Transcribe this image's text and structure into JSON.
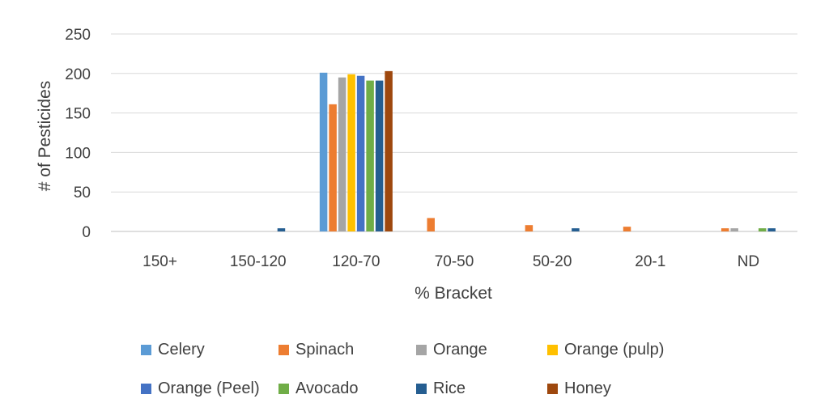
{
  "chart_data": {
    "type": "bar",
    "title": "",
    "xlabel": "% Bracket",
    "ylabel": "# of Pesticides",
    "ylim": [
      0,
      250
    ],
    "yticks": [
      0,
      50,
      100,
      150,
      200,
      250
    ],
    "grid": true,
    "legend_position": "bottom",
    "categories": [
      "150+",
      "150-120",
      "120-70",
      "70-50",
      "50-20",
      "20-1",
      "ND"
    ],
    "series": [
      {
        "name": "Celery",
        "color": "#5B9BD5",
        "values": [
          0,
          0,
          201,
          0,
          0,
          0,
          0
        ]
      },
      {
        "name": "Spinach",
        "color": "#ED7D31",
        "values": [
          0,
          0,
          161,
          17,
          8,
          6,
          4
        ]
      },
      {
        "name": "Orange",
        "color": "#A5A5A5",
        "values": [
          0,
          0,
          195,
          0,
          0,
          0,
          4
        ]
      },
      {
        "name": "Orange (pulp)",
        "color": "#FFC000",
        "values": [
          0,
          0,
          199,
          0,
          0,
          0,
          0
        ]
      },
      {
        "name": "Orange (Peel)",
        "color": "#4472C4",
        "values": [
          0,
          0,
          197,
          0,
          0,
          0,
          0
        ]
      },
      {
        "name": "Avocado",
        "color": "#70AD47",
        "values": [
          0,
          0,
          191,
          0,
          0,
          0,
          4
        ]
      },
      {
        "name": "Rice",
        "color": "#255E91",
        "values": [
          0,
          4,
          191,
          0,
          4,
          0,
          4
        ]
      },
      {
        "name": "Honey",
        "color": "#9E480E",
        "values": [
          0,
          0,
          203,
          0,
          0,
          0,
          0
        ]
      }
    ]
  }
}
